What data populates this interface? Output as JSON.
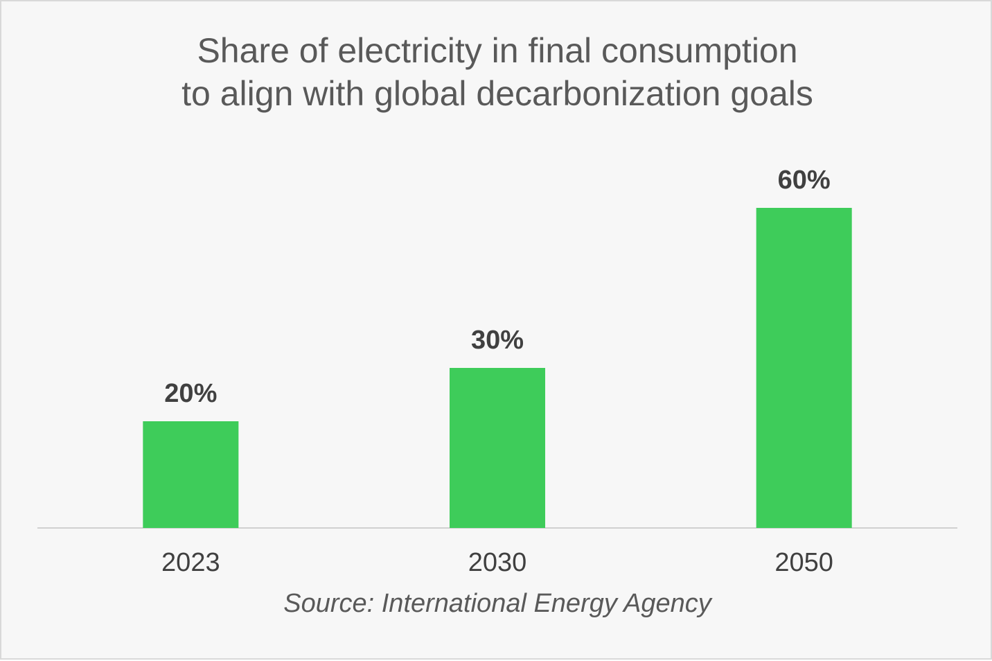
{
  "chart_data": {
    "type": "bar",
    "title_lines": [
      "Share of electricity in final consumption",
      "to align with global decarbonization goals"
    ],
    "categories": [
      "2023",
      "2030",
      "2050"
    ],
    "values": [
      20,
      30,
      60
    ],
    "value_labels": [
      "20%",
      "30%",
      "60%"
    ],
    "unit": "%",
    "ylim": [
      0,
      60
    ],
    "grid": false,
    "legend": "none",
    "bar_color": "#3ecc5a",
    "source": "Source: International Energy Agency"
  }
}
